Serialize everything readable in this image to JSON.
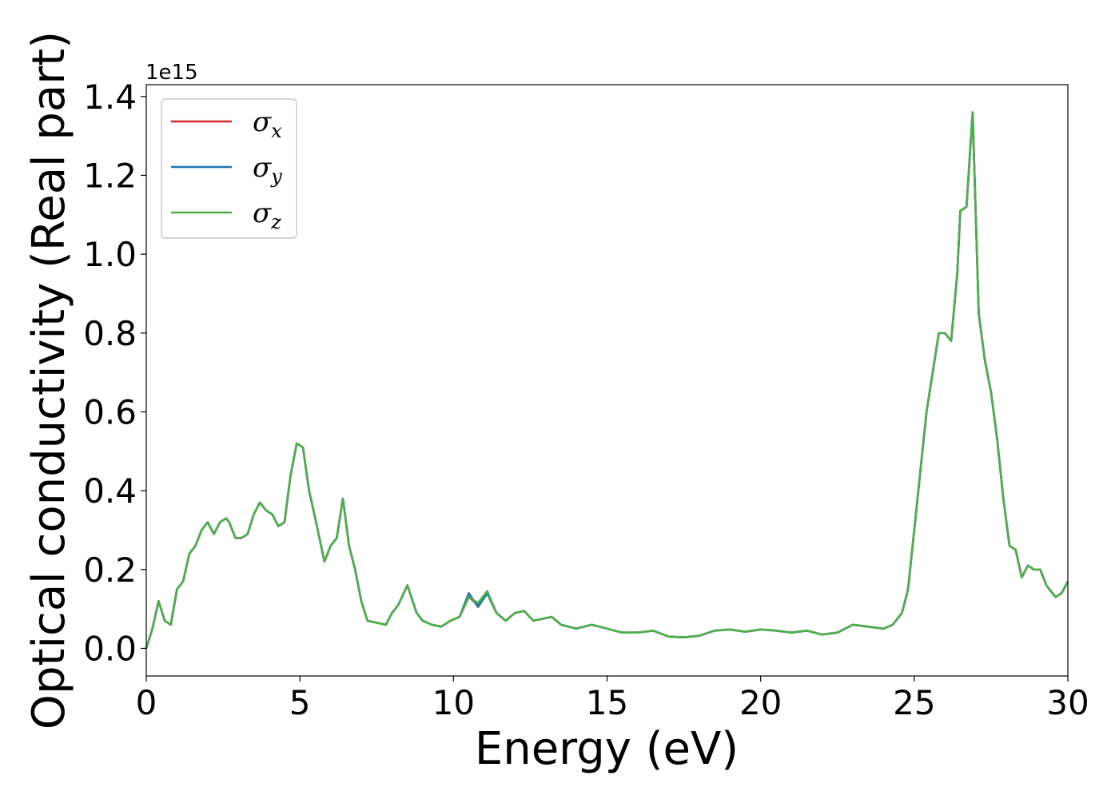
{
  "chart_data": {
    "type": "line",
    "title": "",
    "xlabel": "Energy (eV)",
    "ylabel": "Optical conductivity (Real part)",
    "y_offset_label": "1e15",
    "xlim": [
      0,
      30
    ],
    "ylim": [
      -0.07,
      1.43
    ],
    "xticks": [
      0,
      5,
      10,
      15,
      20,
      25,
      30
    ],
    "yticks": [
      0.0,
      0.2,
      0.4,
      0.6,
      0.8,
      1.0,
      1.2,
      1.4
    ],
    "xtick_labels": [
      "0",
      "5",
      "10",
      "15",
      "20",
      "25",
      "30"
    ],
    "ytick_labels": [
      "0.0",
      "0.2",
      "0.4",
      "0.6",
      "0.8",
      "1.0",
      "1.2",
      "1.4"
    ],
    "grid": false,
    "legend_position": "top-left",
    "x": [
      0,
      0.2,
      0.4,
      0.6,
      0.8,
      1.0,
      1.2,
      1.4,
      1.6,
      1.8,
      2.0,
      2.2,
      2.4,
      2.6,
      2.7,
      2.9,
      3.1,
      3.3,
      3.5,
      3.7,
      3.9,
      4.1,
      4.3,
      4.5,
      4.7,
      4.9,
      5.1,
      5.3,
      5.5,
      5.8,
      6.0,
      6.2,
      6.4,
      6.6,
      6.8,
      7.0,
      7.2,
      7.5,
      7.8,
      8.0,
      8.2,
      8.5,
      8.8,
      9.0,
      9.3,
      9.6,
      9.9,
      10.2,
      10.5,
      10.8,
      11.1,
      11.4,
      11.7,
      12.0,
      12.3,
      12.6,
      12.9,
      13.2,
      13.5,
      14.0,
      14.5,
      15.0,
      15.5,
      16.0,
      16.5,
      17.0,
      17.5,
      18.0,
      18.5,
      19.0,
      19.5,
      20.0,
      20.5,
      21.0,
      21.5,
      22.0,
      22.5,
      23.0,
      23.5,
      24.0,
      24.3,
      24.6,
      24.8,
      25.0,
      25.2,
      25.4,
      25.6,
      25.8,
      26.0,
      26.2,
      26.4,
      26.5,
      26.7,
      26.9,
      27.1,
      27.3,
      27.5,
      27.7,
      27.9,
      28.1,
      28.3,
      28.5,
      28.7,
      28.9,
      29.1,
      29.3,
      29.6,
      29.8,
      30.0
    ],
    "series": [
      {
        "name": "σx",
        "color": "#d62728",
        "values": [
          0.0,
          0.05,
          0.12,
          0.07,
          0.06,
          0.15,
          0.17,
          0.24,
          0.26,
          0.3,
          0.32,
          0.29,
          0.32,
          0.33,
          0.32,
          0.28,
          0.28,
          0.29,
          0.34,
          0.37,
          0.35,
          0.34,
          0.31,
          0.32,
          0.44,
          0.52,
          0.51,
          0.4,
          0.33,
          0.22,
          0.26,
          0.28,
          0.38,
          0.26,
          0.2,
          0.12,
          0.07,
          0.065,
          0.06,
          0.09,
          0.11,
          0.16,
          0.09,
          0.07,
          0.06,
          0.055,
          0.07,
          0.08,
          0.13,
          0.11,
          0.14,
          0.09,
          0.07,
          0.09,
          0.095,
          0.07,
          0.075,
          0.08,
          0.06,
          0.05,
          0.06,
          0.05,
          0.04,
          0.04,
          0.045,
          0.03,
          0.028,
          0.032,
          0.045,
          0.048,
          0.042,
          0.048,
          0.045,
          0.04,
          0.045,
          0.035,
          0.04,
          0.06,
          0.055,
          0.05,
          0.06,
          0.09,
          0.15,
          0.3,
          0.45,
          0.6,
          0.7,
          0.8,
          0.8,
          0.78,
          0.95,
          1.11,
          1.12,
          1.36,
          0.85,
          0.73,
          0.65,
          0.53,
          0.38,
          0.26,
          0.25,
          0.18,
          0.21,
          0.2,
          0.2,
          0.16,
          0.13,
          0.14,
          0.17
        ]
      },
      {
        "name": "σy",
        "color": "#1f77b4",
        "values": [
          0.0,
          0.05,
          0.12,
          0.07,
          0.06,
          0.15,
          0.17,
          0.24,
          0.26,
          0.3,
          0.32,
          0.29,
          0.32,
          0.33,
          0.32,
          0.28,
          0.28,
          0.29,
          0.34,
          0.37,
          0.35,
          0.34,
          0.31,
          0.32,
          0.44,
          0.52,
          0.51,
          0.4,
          0.33,
          0.22,
          0.26,
          0.28,
          0.38,
          0.26,
          0.2,
          0.12,
          0.07,
          0.065,
          0.06,
          0.09,
          0.11,
          0.16,
          0.09,
          0.07,
          0.06,
          0.055,
          0.07,
          0.08,
          0.14,
          0.105,
          0.14,
          0.09,
          0.07,
          0.09,
          0.095,
          0.07,
          0.075,
          0.08,
          0.06,
          0.05,
          0.06,
          0.05,
          0.04,
          0.04,
          0.045,
          0.03,
          0.028,
          0.032,
          0.045,
          0.048,
          0.042,
          0.048,
          0.045,
          0.04,
          0.045,
          0.035,
          0.04,
          0.06,
          0.055,
          0.05,
          0.06,
          0.09,
          0.15,
          0.3,
          0.45,
          0.6,
          0.7,
          0.8,
          0.8,
          0.78,
          0.95,
          1.11,
          1.12,
          1.36,
          0.85,
          0.73,
          0.65,
          0.53,
          0.38,
          0.26,
          0.25,
          0.18,
          0.21,
          0.2,
          0.2,
          0.16,
          0.13,
          0.14,
          0.17
        ]
      },
      {
        "name": "σz",
        "color": "#4daf4a",
        "values": [
          0.0,
          0.05,
          0.12,
          0.07,
          0.06,
          0.15,
          0.17,
          0.24,
          0.26,
          0.3,
          0.32,
          0.29,
          0.32,
          0.33,
          0.32,
          0.28,
          0.28,
          0.29,
          0.34,
          0.37,
          0.35,
          0.34,
          0.31,
          0.32,
          0.44,
          0.52,
          0.51,
          0.4,
          0.33,
          0.22,
          0.26,
          0.28,
          0.38,
          0.26,
          0.2,
          0.12,
          0.07,
          0.065,
          0.06,
          0.09,
          0.11,
          0.16,
          0.09,
          0.07,
          0.06,
          0.055,
          0.07,
          0.08,
          0.13,
          0.115,
          0.145,
          0.09,
          0.07,
          0.09,
          0.095,
          0.07,
          0.075,
          0.08,
          0.06,
          0.05,
          0.06,
          0.05,
          0.04,
          0.04,
          0.045,
          0.03,
          0.028,
          0.032,
          0.045,
          0.048,
          0.042,
          0.048,
          0.045,
          0.04,
          0.045,
          0.035,
          0.04,
          0.06,
          0.055,
          0.05,
          0.06,
          0.09,
          0.15,
          0.3,
          0.45,
          0.6,
          0.7,
          0.8,
          0.8,
          0.78,
          0.95,
          1.11,
          1.12,
          1.36,
          0.85,
          0.73,
          0.65,
          0.53,
          0.38,
          0.26,
          0.25,
          0.18,
          0.21,
          0.2,
          0.2,
          0.16,
          0.13,
          0.14,
          0.17
        ]
      }
    ]
  }
}
